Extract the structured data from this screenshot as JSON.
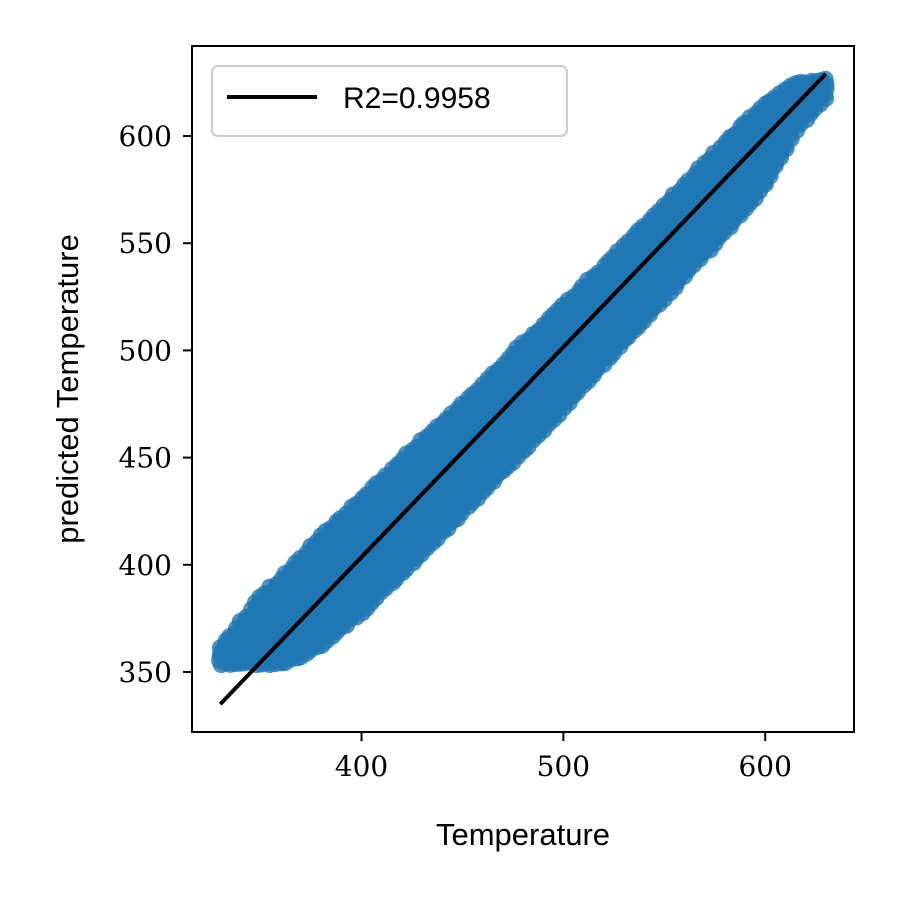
{
  "chart_data": {
    "type": "scatter",
    "title": "",
    "xlabel": "Temperature",
    "ylabel": "predicted Temperature",
    "xlim": [
      316,
      644
    ],
    "ylim": [
      322,
      642
    ],
    "xticks": [
      400,
      500,
      600
    ],
    "yticks": [
      350,
      400,
      450,
      500,
      550,
      600
    ],
    "grid": false,
    "legend": {
      "placement": "top-left",
      "entries": [
        "R2=0.9958"
      ]
    },
    "series": [
      {
        "kind": "scatter",
        "color": "#1f77b4",
        "band": {
          "x": [
            330,
            340,
            350,
            360,
            370,
            380,
            400,
            420,
            440,
            460,
            480,
            500,
            520,
            540,
            560,
            580,
            600,
            615,
            630
          ],
          "y_low": [
            354,
            354,
            354,
            354,
            357,
            363,
            378,
            396,
            415,
            434,
            453,
            473,
            494,
            514,
            535,
            555,
            577,
            603,
            618
          ],
          "y_high": [
            361,
            373,
            385,
            393,
            403,
            413,
            431,
            449,
            466,
            484,
            503,
            521,
            539,
            558,
            577,
            597,
            615,
            625,
            626
          ]
        },
        "outliers": [
          [
            595,
            589
          ],
          [
            613,
            603
          ],
          [
            625,
            622
          ],
          [
            628,
            624
          ]
        ]
      },
      {
        "kind": "line",
        "name": "R2=0.9958",
        "color": "#000000",
        "x": [
          330,
          630
        ],
        "y": [
          335,
          629
        ]
      }
    ]
  }
}
